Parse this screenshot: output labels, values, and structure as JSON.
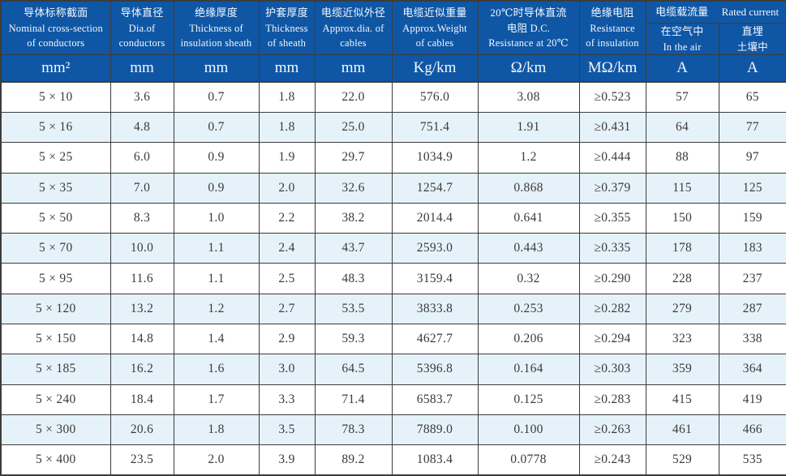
{
  "table": {
    "group_header": {
      "cn": "电缆载流量",
      "en": "Rated current"
    },
    "columns": [
      {
        "id": "cross_section",
        "lines": [
          "导体标称截面",
          "Nominal cross-section",
          "of conductors"
        ],
        "unit": "mm²"
      },
      {
        "id": "conductor_diameter",
        "lines": [
          "导体直径",
          "Dia.of",
          "conductors"
        ],
        "unit": "mm"
      },
      {
        "id": "insulation_thickness",
        "lines": [
          "绝缘厚度",
          "Thickness of",
          "insulation sheath"
        ],
        "unit": "mm"
      },
      {
        "id": "sheath_thickness",
        "lines": [
          "护套厚度",
          "Thickness",
          "of sheath"
        ],
        "unit": "mm"
      },
      {
        "id": "cable_diameter",
        "lines": [
          "电缆近似外径",
          "Approx.dia. of",
          "cables"
        ],
        "unit": "mm"
      },
      {
        "id": "cable_weight",
        "lines": [
          "电缆近似重量",
          "Approx.Weight",
          "of cables"
        ],
        "unit": "Kg/km"
      },
      {
        "id": "dc_resistance",
        "lines": [
          "20℃时导体直流",
          "电阻 D.C.",
          "Resistance at 20℃"
        ],
        "unit": "Ω/km"
      },
      {
        "id": "insulation_resistance",
        "lines": [
          "绝缘电阻",
          "Resistance",
          "of insulation"
        ],
        "unit": "MΩ/km"
      },
      {
        "id": "current_in_air",
        "lines": [
          "在空气中",
          "In the air"
        ],
        "unit": "A"
      },
      {
        "id": "current_buried",
        "lines": [
          "直埋",
          "土壤中"
        ],
        "unit": "A"
      }
    ],
    "rows": [
      [
        "5 × 10",
        "3.6",
        "0.7",
        "1.8",
        "22.0",
        "576.0",
        "3.08",
        "≥0.523",
        "57",
        "65"
      ],
      [
        "5 × 16",
        "4.8",
        "0.7",
        "1.8",
        "25.0",
        "751.4",
        "1.91",
        "≥0.431",
        "64",
        "77"
      ],
      [
        "5 × 25",
        "6.0",
        "0.9",
        "1.9",
        "29.7",
        "1034.9",
        "1.2",
        "≥0.444",
        "88",
        "97"
      ],
      [
        "5 × 35",
        "7.0",
        "0.9",
        "2.0",
        "32.6",
        "1254.7",
        "0.868",
        "≥0.379",
        "115",
        "125"
      ],
      [
        "5 × 50",
        "8.3",
        "1.0",
        "2.2",
        "38.2",
        "2014.4",
        "0.641",
        "≥0.355",
        "150",
        "159"
      ],
      [
        "5 × 70",
        "10.0",
        "1.1",
        "2.4",
        "43.7",
        "2593.0",
        "0.443",
        "≥0.335",
        "178",
        "183"
      ],
      [
        "5 × 95",
        "11.6",
        "1.1",
        "2.5",
        "48.3",
        "3159.4",
        "0.32",
        "≥0.290",
        "228",
        "237"
      ],
      [
        "5 × 120",
        "13.2",
        "1.2",
        "2.7",
        "53.5",
        "3833.8",
        "0.253",
        "≥0.282",
        "279",
        "287"
      ],
      [
        "5 × 150",
        "14.8",
        "1.4",
        "2.9",
        "59.3",
        "4627.7",
        "0.206",
        "≥0.294",
        "323",
        "338"
      ],
      [
        "5 × 185",
        "16.2",
        "1.6",
        "3.0",
        "64.5",
        "5396.8",
        "0.164",
        "≥0.303",
        "359",
        "364"
      ],
      [
        "5 × 240",
        "18.4",
        "1.7",
        "3.3",
        "71.4",
        "6583.7",
        "0.125",
        "≥0.283",
        "415",
        "419"
      ],
      [
        "5 × 300",
        "20.6",
        "1.8",
        "3.5",
        "78.3",
        "7889.0",
        "0.100",
        "≥0.263",
        "461",
        "466"
      ],
      [
        "5 × 400",
        "23.5",
        "2.0",
        "3.9",
        "89.2",
        "1083.4",
        "0.0778",
        "≥0.243",
        "529",
        "535"
      ]
    ]
  }
}
